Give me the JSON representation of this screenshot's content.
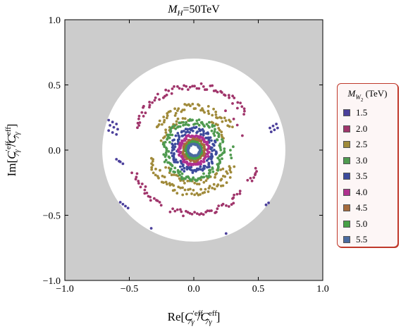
{
  "chart_data": {
    "type": "scatter",
    "title": "M_H = 50TeV",
    "title_parts": {
      "symbol": "M",
      "sub": "H",
      "value": "=50TeV"
    },
    "xlabel": "Re[C'_7γ^eff / C_7γ^eff]",
    "ylabel": "Im[C'_7γ^eff / C_7γ^eff]",
    "xlim": [
      -1.0,
      1.0
    ],
    "ylim": [
      -1.0,
      1.0
    ],
    "xticks": [
      "−1.0",
      "−0.5",
      "0.0",
      "0.5",
      "1.0"
    ],
    "yticks": [
      "−1.0",
      "−0.5",
      "0.0",
      "0.5",
      "1.0"
    ],
    "tick_values": [
      -1.0,
      -0.5,
      0.0,
      0.5,
      1.0
    ],
    "background_color": "#cccccc",
    "allowed_region": {
      "shape": "disk",
      "center": [
        0.0,
        0.0
      ],
      "radius": 0.71,
      "color": "#ffffff"
    },
    "legend": {
      "title": "M_W2 (TeV)",
      "placement": "right",
      "entries": [
        "1.5",
        "2.0",
        "2.5",
        "3.0",
        "3.5",
        "4.0",
        "4.5",
        "5.0",
        "5.5"
      ]
    },
    "series": [
      {
        "name": "1.5",
        "color": "#4b3f9b",
        "clusters": [
          {
            "x": -0.66,
            "y": 0.23,
            "n": 3,
            "dx": 0.03,
            "dy": -0.015
          },
          {
            "x": -0.65,
            "y": 0.19,
            "n": 3,
            "dx": 0.03,
            "dy": -0.015
          },
          {
            "x": -0.66,
            "y": 0.15,
            "n": 3,
            "dx": 0.03,
            "dy": -0.015
          },
          {
            "x": -0.6,
            "y": -0.07,
            "n": 2,
            "dx": 0.02,
            "dy": -0.015
          },
          {
            "x": -0.57,
            "y": -0.09,
            "n": 2,
            "dx": 0.02,
            "dy": -0.015
          },
          {
            "x": 0.59,
            "y": 0.17,
            "n": 3,
            "dx": 0.025,
            "dy": 0.015
          },
          {
            "x": 0.6,
            "y": 0.14,
            "n": 3,
            "dx": 0.025,
            "dy": 0.015
          },
          {
            "x": -0.57,
            "y": -0.4,
            "n": 2,
            "dx": 0.02,
            "dy": -0.015
          },
          {
            "x": -0.53,
            "y": -0.43,
            "n": 2,
            "dx": 0.02,
            "dy": -0.015
          },
          {
            "x": 0.56,
            "y": -0.42,
            "n": 2,
            "dx": 0.02,
            "dy": 0.015
          },
          {
            "x": -0.33,
            "y": -0.6,
            "n": 1,
            "dx": 0.0,
            "dy": 0.0
          },
          {
            "x": 0.25,
            "y": -0.64,
            "n": 1,
            "dx": 0.0,
            "dy": 0.0
          }
        ]
      },
      {
        "name": "2.0",
        "color": "#a0356b",
        "rings": [
          {
            "r": 0.49,
            "arcs": [
              [
                200,
                240
              ],
              [
                248,
                320
              ],
              [
                330,
                345
              ],
              [
                35,
                160
              ]
            ],
            "thickness": 0.05,
            "density": 180
          },
          {
            "r": 0.38,
            "arcs": [
              [
                15,
                55
              ]
            ],
            "thickness": 0.03,
            "density": 40
          }
        ]
      },
      {
        "name": "2.5",
        "color": "#a08a3a",
        "rings": [
          {
            "r": 0.33,
            "arcs": [
              [
                190,
                340
              ],
              [
                30,
                150
              ]
            ],
            "thickness": 0.06,
            "density": 160
          },
          {
            "r": 0.25,
            "arcs": [
              [
                210,
                330
              ],
              [
                100,
                170
              ],
              [
                20,
                60
              ]
            ],
            "thickness": 0.04,
            "density": 90
          }
        ]
      },
      {
        "name": "3.0",
        "color": "#4f9a4f",
        "rings": [
          {
            "r": 0.22,
            "arcs": [
              [
                0,
                360
              ]
            ],
            "thickness": 0.05,
            "density": 150
          },
          {
            "r": 0.3,
            "arcs": [
              [
                345,
                370
              ]
            ],
            "thickness": 0.04,
            "density": 25
          }
        ]
      },
      {
        "name": "3.5",
        "color": "#3c4a9c",
        "rings": [
          {
            "r": 0.155,
            "arcs": [
              [
                0,
                360
              ]
            ],
            "thickness": 0.05,
            "density": 130
          }
        ]
      },
      {
        "name": "4.0",
        "color": "#b0308f",
        "rings": [
          {
            "r": 0.11,
            "arcs": [
              [
                0,
                360
              ]
            ],
            "thickness": 0.025,
            "density": 90
          }
        ]
      },
      {
        "name": "4.5",
        "color": "#a56a3c",
        "rings": [
          {
            "r": 0.08,
            "arcs": [
              [
                0,
                360
              ]
            ],
            "thickness": 0.02,
            "density": 70
          }
        ]
      },
      {
        "name": "5.0",
        "color": "#46a046",
        "rings": [
          {
            "r": 0.06,
            "arcs": [
              [
                0,
                360
              ]
            ],
            "thickness": 0.015,
            "density": 60
          }
        ]
      },
      {
        "name": "5.5",
        "color": "#4a6aa0",
        "rings": [
          {
            "r": 0.045,
            "arcs": [
              [
                0,
                360
              ]
            ],
            "thickness": 0.01,
            "density": 50
          }
        ]
      }
    ]
  }
}
